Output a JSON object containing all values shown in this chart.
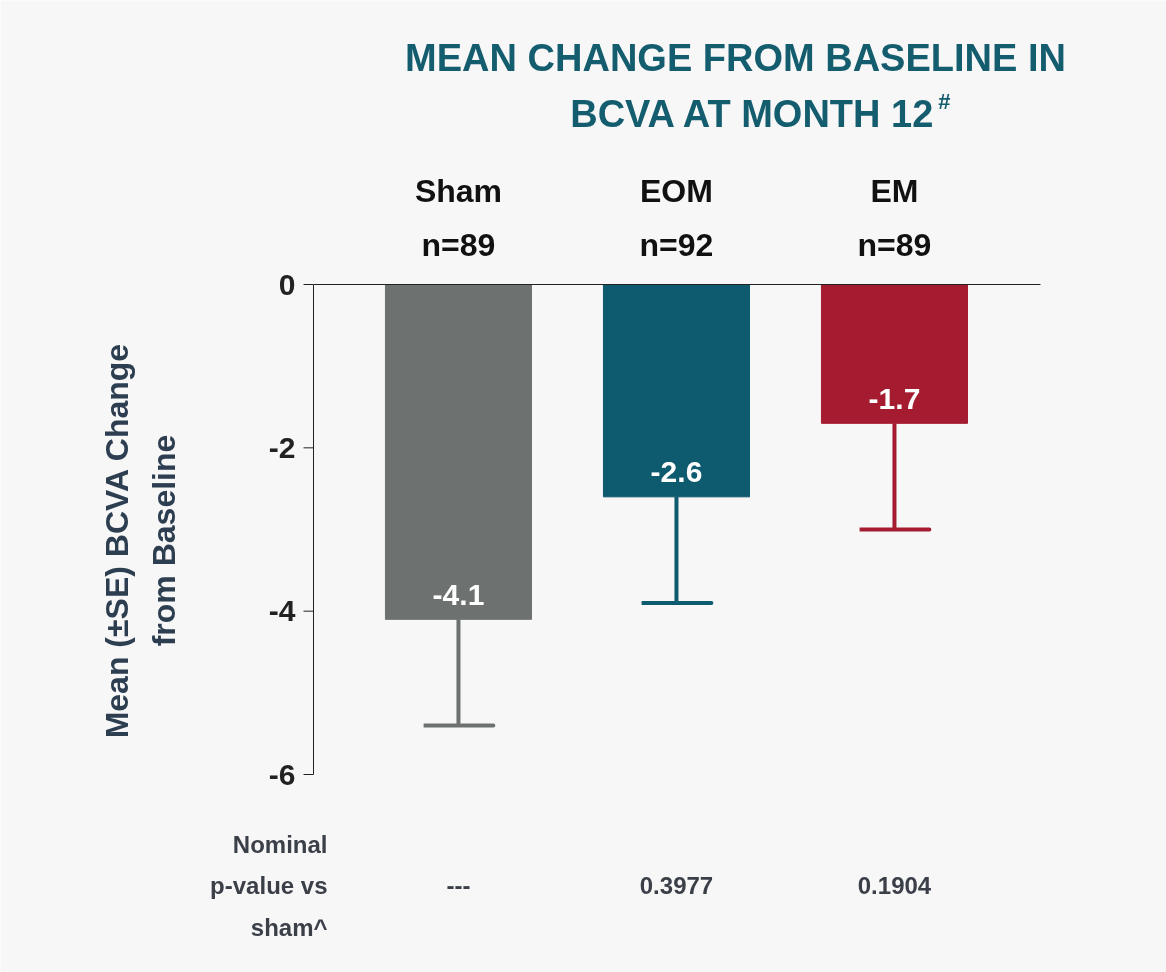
{
  "chart_data": {
    "type": "bar",
    "title": "MEAN CHANGE FROM BASELINE IN\nBCVA AT MONTH 12$^{#}$",
    "ylabel": "Mean (±SE) BCVA Change\nfrom Baseline",
    "categories": [
      "Sham\nn=89",
      "EOM\nn=92",
      "EM\nn=89"
    ],
    "values": [
      -4.1,
      -2.6,
      -1.7
    ],
    "colors": [
      "#6d7271",
      "#0e5a6e",
      "#a51c30"
    ],
    "errors": [
      [
        -5.4,
        -4.1
      ],
      [
        -3.9,
        -2.6
      ],
      [
        -3.0,
        -1.7
      ]
    ],
    "data_labels": true,
    "ylim": [
      -6,
      0
    ],
    "yticks": [
      0,
      -2,
      -4,
      -6
    ],
    "grid": false,
    "annotations": [
      "Nominal\np-value vs\nsham^",
      "---",
      "0.3977",
      "0.1904"
    ]
  }
}
